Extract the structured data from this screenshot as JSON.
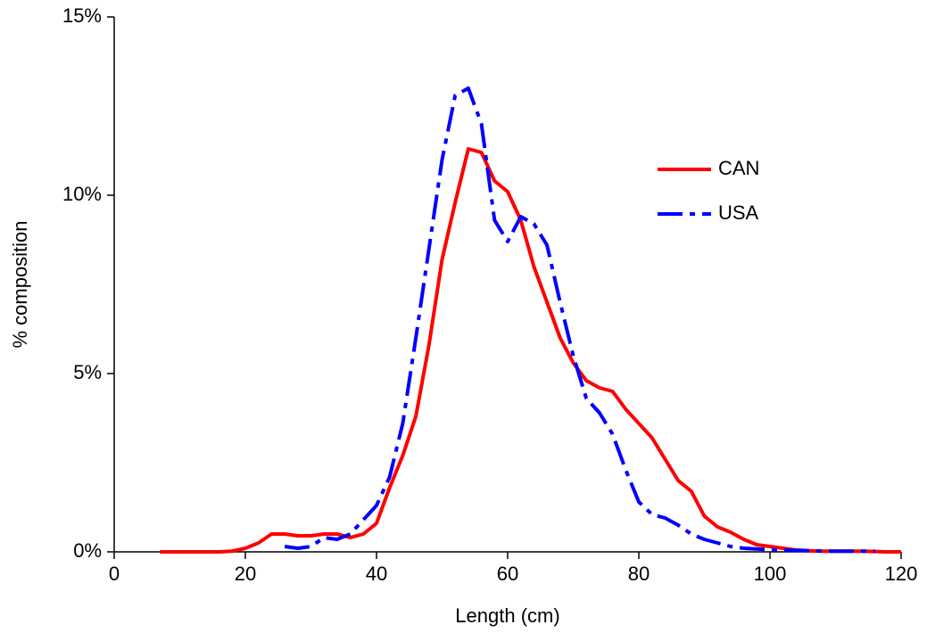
{
  "chart_data": {
    "type": "line",
    "xlabel": "Length (cm)",
    "ylabel": "% composition",
    "x": [
      7,
      8,
      10,
      12,
      14,
      16,
      18,
      20,
      22,
      24,
      26,
      28,
      30,
      32,
      34,
      36,
      38,
      40,
      42,
      44,
      46,
      48,
      50,
      52,
      54,
      56,
      58,
      60,
      62,
      64,
      66,
      68,
      70,
      72,
      74,
      76,
      78,
      80,
      82,
      84,
      86,
      88,
      90,
      92,
      94,
      96,
      98,
      100,
      102,
      104,
      106,
      108,
      110,
      112,
      114,
      116,
      118,
      120
    ],
    "series": [
      {
        "name": "CAN",
        "color": "#ff0000",
        "dash": false,
        "values": [
          0,
          0,
          0,
          0,
          0,
          0,
          0.02,
          0.1,
          0.25,
          0.5,
          0.5,
          0.45,
          0.45,
          0.5,
          0.5,
          0.4,
          0.5,
          0.8,
          1.8,
          2.7,
          3.8,
          5.8,
          8.2,
          9.8,
          11.3,
          11.2,
          10.4,
          10.1,
          9.3,
          8.0,
          7.0,
          6.0,
          5.3,
          4.8,
          4.6,
          4.5,
          4.0,
          3.6,
          3.2,
          2.6,
          2.0,
          1.7,
          1.0,
          0.7,
          0.55,
          0.35,
          0.2,
          0.15,
          0.1,
          0.05,
          0.03,
          0.02,
          0.02,
          0.02,
          0.02,
          0.01,
          0,
          0
        ]
      },
      {
        "name": "USA",
        "color": "#0000ff",
        "dash": true,
        "values": [
          null,
          null,
          null,
          null,
          null,
          null,
          null,
          null,
          null,
          null,
          0.15,
          0.1,
          0.15,
          0.4,
          0.35,
          0.5,
          0.9,
          1.3,
          2.1,
          3.6,
          6.0,
          8.5,
          11.0,
          12.8,
          13.0,
          12.0,
          9.3,
          8.7,
          9.4,
          9.2,
          8.6,
          7.0,
          5.5,
          4.3,
          3.9,
          3.3,
          2.3,
          1.4,
          1.05,
          0.95,
          0.75,
          0.5,
          0.35,
          0.25,
          0.15,
          0.1,
          0.08,
          0.06,
          0.05,
          0.04,
          0.03,
          0.02,
          0.02,
          0.02,
          0.02,
          0.02,
          null,
          null
        ]
      }
    ],
    "xlim": [
      0,
      120
    ],
    "xticks": [
      0,
      20,
      40,
      60,
      80,
      100,
      120
    ],
    "ylim": [
      0,
      15
    ],
    "yticks": [
      {
        "value": 0,
        "label": "0%"
      },
      {
        "value": 5,
        "label": "5%"
      },
      {
        "value": 10,
        "label": "10%"
      },
      {
        "value": 15,
        "label": "15%"
      }
    ],
    "grid": false
  }
}
